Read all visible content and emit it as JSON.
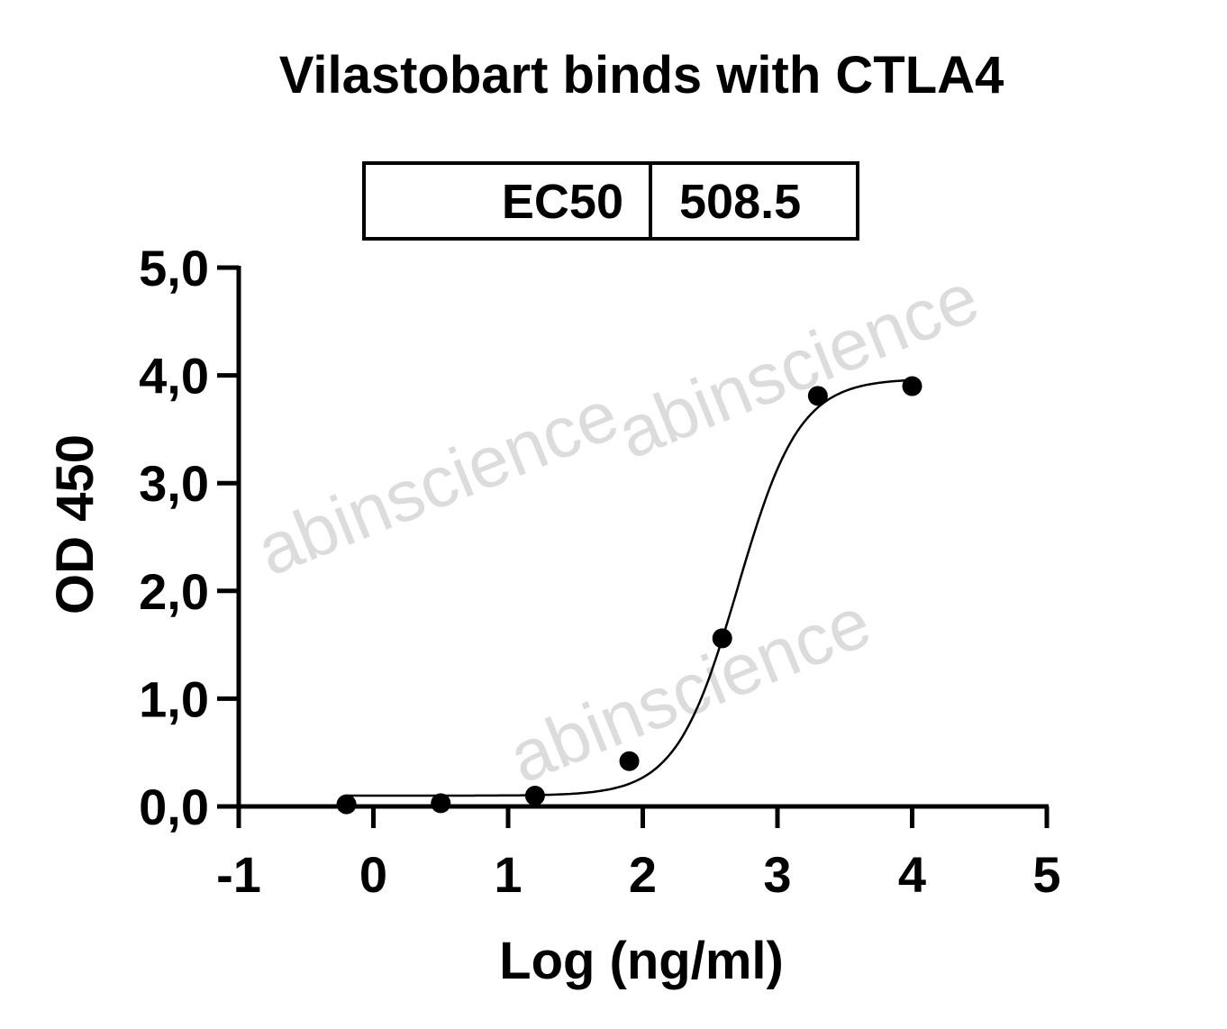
{
  "watermark": "abinscience",
  "chart_data": {
    "type": "scatter",
    "title": "Vilastobart binds with CTLA4",
    "xlabel": "Log (ng/ml)",
    "ylabel": "OD 450",
    "xlim": [
      -1,
      5
    ],
    "ylim": [
      0,
      5
    ],
    "x_ticks": [
      "-1",
      "0",
      "1",
      "2",
      "3",
      "4",
      "5"
    ],
    "y_ticks": [
      "0,0",
      "1,0",
      "2,0",
      "3,0",
      "4,0",
      "5,0"
    ],
    "grid": false,
    "points": {
      "x": [
        -0.2,
        0.5,
        1.2,
        1.9,
        2.59,
        3.3,
        4.0
      ],
      "y": [
        0.02,
        0.03,
        0.1,
        0.42,
        1.56,
        3.81,
        3.9
      ]
    },
    "fit": {
      "model": "4PL",
      "bottom": 0.1,
      "top": 3.97,
      "logEC50": 2.706,
      "hill": 1.9
    },
    "table": {
      "label": "EC50",
      "value": "508.5"
    },
    "colors": {
      "points": "#000000",
      "curve": "#000000"
    }
  }
}
